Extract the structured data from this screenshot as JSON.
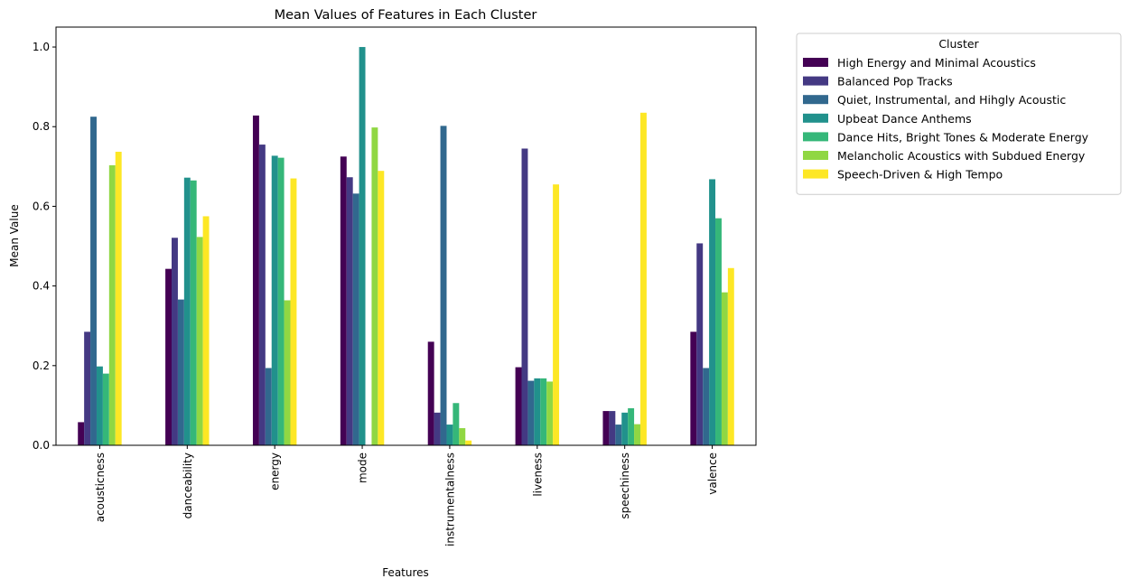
{
  "chart_data": {
    "type": "bar",
    "title": "Mean Values of Features in Each Cluster",
    "xlabel": "Features",
    "ylabel": "Mean Value",
    "ylim": [
      0,
      1.05
    ],
    "yticks": [
      "0.0",
      "0.2",
      "0.4",
      "0.6",
      "0.8",
      "1.0"
    ],
    "categories": [
      "acousticness",
      "danceability",
      "energy",
      "mode",
      "instrumentalness",
      "liveness",
      "speechiness",
      "valence"
    ],
    "legend": {
      "title": "Cluster",
      "placement": "outside-upper-right"
    },
    "series": [
      {
        "name": "High Energy and Minimal Acoustics",
        "color": "#440154",
        "values": [
          0.058,
          0.443,
          0.828,
          0.725,
          0.26,
          0.196,
          0.086,
          0.285
        ]
      },
      {
        "name": "Balanced Pop Tracks",
        "color": "#443983",
        "values": [
          0.285,
          0.521,
          0.755,
          0.673,
          0.082,
          0.745,
          0.086,
          0.507
        ]
      },
      {
        "name": "Quiet, Instrumental, and Hihgly Acoustic",
        "color": "#31688e",
        "values": [
          0.825,
          0.366,
          0.194,
          0.632,
          0.802,
          0.162,
          0.052,
          0.194
        ]
      },
      {
        "name": "Upbeat Dance Anthems",
        "color": "#21918c",
        "values": [
          0.198,
          0.672,
          0.727,
          1.0,
          0.052,
          0.168,
          0.082,
          0.668
        ]
      },
      {
        "name": "Dance Hits, Bright Tones & Moderate Energy",
        "color": "#35b779",
        "values": [
          0.18,
          0.665,
          0.722,
          0.0,
          0.106,
          0.168,
          0.093,
          0.57
        ]
      },
      {
        "name": "Melancholic Acoustics with Subdued Energy",
        "color": "#90d743",
        "values": [
          0.703,
          0.523,
          0.364,
          0.798,
          0.043,
          0.16,
          0.053,
          0.384
        ]
      },
      {
        "name": "Speech-Driven & High Tempo",
        "color": "#fde725",
        "values": [
          0.737,
          0.575,
          0.67,
          0.689,
          0.012,
          0.655,
          0.835,
          0.445
        ]
      }
    ]
  }
}
